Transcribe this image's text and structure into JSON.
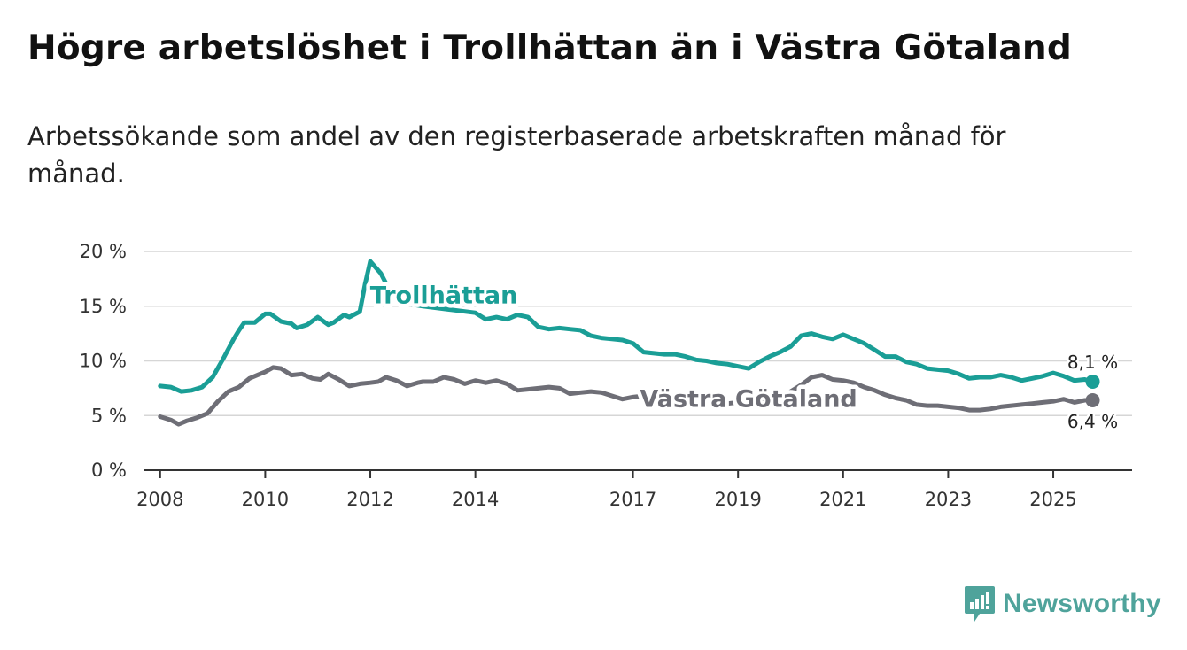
{
  "title": "Högre arbetslöshet i Trollhättan än i Västra Götaland",
  "subtitle": "Arbetssökande som andel av den registerbaserade arbetskraften månad för månad.",
  "brand": {
    "name": "Newsworthy",
    "color": "#4fa39b"
  },
  "chart_data": {
    "type": "line",
    "title": "Högre arbetslöshet i Trollhättan än i Västra Götaland",
    "ylabel": "",
    "xlabel": "",
    "ylim": [
      0,
      20
    ],
    "xlim": [
      2007.7,
      2026.5
    ],
    "y_ticks": [
      0,
      5,
      10,
      15,
      20
    ],
    "y_tick_labels": [
      "0 %",
      "5 %",
      "10 %",
      "15 %",
      "20 %"
    ],
    "x_ticks": [
      2008,
      2010,
      2012,
      2014,
      2017,
      2019,
      2021,
      2023,
      2025
    ],
    "x_tick_labels": [
      "2008",
      "2010",
      "2012",
      "2014",
      "2017",
      "2019",
      "2021",
      "2023",
      "2025"
    ],
    "grid": true,
    "series": [
      {
        "name": "Trollhättan",
        "color": "#1a9e96",
        "end_label": "8,1 %",
        "x": [
          2008.0,
          2008.2,
          2008.4,
          2008.6,
          2008.8,
          2009.0,
          2009.2,
          2009.4,
          2009.5,
          2009.6,
          2009.8,
          2010.0,
          2010.1,
          2010.3,
          2010.5,
          2010.6,
          2010.8,
          2011.0,
          2011.2,
          2011.3,
          2011.5,
          2011.6,
          2011.8,
          2011.9,
          2012.0,
          2012.2,
          2012.35,
          2012.5,
          2013.0,
          2013.5,
          2014.0,
          2014.2,
          2014.4,
          2014.6,
          2014.8,
          2015.0,
          2015.2,
          2015.4,
          2015.6,
          2015.8,
          2016.0,
          2016.2,
          2016.4,
          2016.6,
          2016.8,
          2017.0,
          2017.2,
          2017.4,
          2017.6,
          2017.8,
          2018.0,
          2018.2,
          2018.4,
          2018.6,
          2018.8,
          2019.0,
          2019.2,
          2019.4,
          2019.6,
          2019.8,
          2020.0,
          2020.2,
          2020.4,
          2020.6,
          2020.8,
          2021.0,
          2021.2,
          2021.4,
          2021.6,
          2021.8,
          2022.0,
          2022.2,
          2022.4,
          2022.6,
          2022.8,
          2023.0,
          2023.2,
          2023.4,
          2023.6,
          2023.8,
          2024.0,
          2024.2,
          2024.4,
          2024.6,
          2024.8,
          2025.0,
          2025.2,
          2025.4,
          2025.6,
          2025.75
        ],
        "values": [
          7.7,
          7.6,
          7.2,
          7.3,
          7.6,
          8.5,
          10.2,
          12.0,
          12.8,
          13.5,
          13.5,
          14.3,
          14.3,
          13.6,
          13.4,
          13.0,
          13.3,
          14.0,
          13.3,
          13.5,
          14.2,
          14.0,
          14.5,
          17.0,
          19.1,
          18.0,
          16.6,
          15.4,
          15.0,
          14.7,
          14.4,
          13.8,
          14.0,
          13.8,
          14.2,
          14.0,
          13.1,
          12.9,
          13.0,
          12.9,
          12.8,
          12.3,
          12.1,
          12.0,
          11.9,
          11.6,
          10.8,
          10.7,
          10.6,
          10.6,
          10.4,
          10.1,
          10.0,
          9.8,
          9.7,
          9.5,
          9.3,
          9.9,
          10.4,
          10.8,
          11.3,
          12.3,
          12.5,
          12.2,
          12.0,
          12.4,
          12.0,
          11.6,
          11.0,
          10.4,
          10.4,
          9.9,
          9.7,
          9.3,
          9.2,
          9.1,
          8.8,
          8.4,
          8.5,
          8.5,
          8.7,
          8.5,
          8.2,
          8.4,
          8.6,
          8.9,
          8.6,
          8.2,
          8.3,
          8.1
        ]
      },
      {
        "name": "Västra Götaland",
        "color": "#6e6e76",
        "end_label": "6,4 %",
        "x": [
          2008.0,
          2008.2,
          2008.35,
          2008.5,
          2008.7,
          2008.9,
          2009.1,
          2009.3,
          2009.5,
          2009.7,
          2009.9,
          2010.0,
          2010.15,
          2010.3,
          2010.5,
          2010.7,
          2010.9,
          2011.05,
          2011.2,
          2011.4,
          2011.6,
          2011.8,
          2012.0,
          2012.15,
          2012.3,
          2012.5,
          2012.7,
          2012.9,
          2013.0,
          2013.2,
          2013.4,
          2013.6,
          2013.8,
          2014.0,
          2014.2,
          2014.4,
          2014.6,
          2014.8,
          2015.0,
          2015.2,
          2015.4,
          2015.6,
          2015.8,
          2016.0,
          2016.2,
          2016.4,
          2016.6,
          2016.8,
          2017.0,
          2017.2,
          2017.4,
          2017.6,
          2017.8,
          2018.0,
          2018.2,
          2018.4,
          2018.6,
          2018.8,
          2019.0,
          2019.2,
          2019.4,
          2019.6,
          2019.8,
          2020.0,
          2020.2,
          2020.4,
          2020.6,
          2020.8,
          2021.0,
          2021.2,
          2021.4,
          2021.6,
          2021.8,
          2022.0,
          2022.2,
          2022.4,
          2022.6,
          2022.8,
          2023.0,
          2023.2,
          2023.4,
          2023.6,
          2023.8,
          2024.0,
          2024.2,
          2024.4,
          2024.6,
          2024.8,
          2025.0,
          2025.2,
          2025.4,
          2025.6,
          2025.75
        ],
        "values": [
          4.9,
          4.6,
          4.2,
          4.5,
          4.8,
          5.2,
          6.3,
          7.2,
          7.6,
          8.4,
          8.8,
          9.0,
          9.4,
          9.3,
          8.7,
          8.8,
          8.4,
          8.3,
          8.8,
          8.3,
          7.7,
          7.9,
          8.0,
          8.1,
          8.5,
          8.2,
          7.7,
          8.0,
          8.1,
          8.1,
          8.5,
          8.3,
          7.9,
          8.2,
          8.0,
          8.2,
          7.9,
          7.3,
          7.4,
          7.5,
          7.6,
          7.5,
          7.0,
          7.1,
          7.2,
          7.1,
          6.8,
          6.5,
          6.7,
          6.8,
          6.5,
          6.4,
          6.5,
          6.3,
          6.5,
          6.3,
          6.2,
          6.1,
          6.2,
          6.3,
          6.3,
          6.4,
          6.5,
          7.2,
          7.8,
          8.5,
          8.7,
          8.3,
          8.2,
          8.0,
          7.6,
          7.3,
          6.9,
          6.6,
          6.4,
          6.0,
          5.9,
          5.9,
          5.8,
          5.7,
          5.5,
          5.5,
          5.6,
          5.8,
          5.9,
          6.0,
          6.1,
          6.2,
          6.3,
          6.5,
          6.2,
          6.4,
          6.4
        ]
      }
    ],
    "annotations": [
      {
        "series": "Trollhättan",
        "text": "Trollhättan",
        "at_x": 2013.4,
        "at_y": 16.0
      },
      {
        "series": "Västra Götaland",
        "text": "Västra Götaland",
        "at_x": 2019.2,
        "at_y": 6.5
      }
    ]
  }
}
